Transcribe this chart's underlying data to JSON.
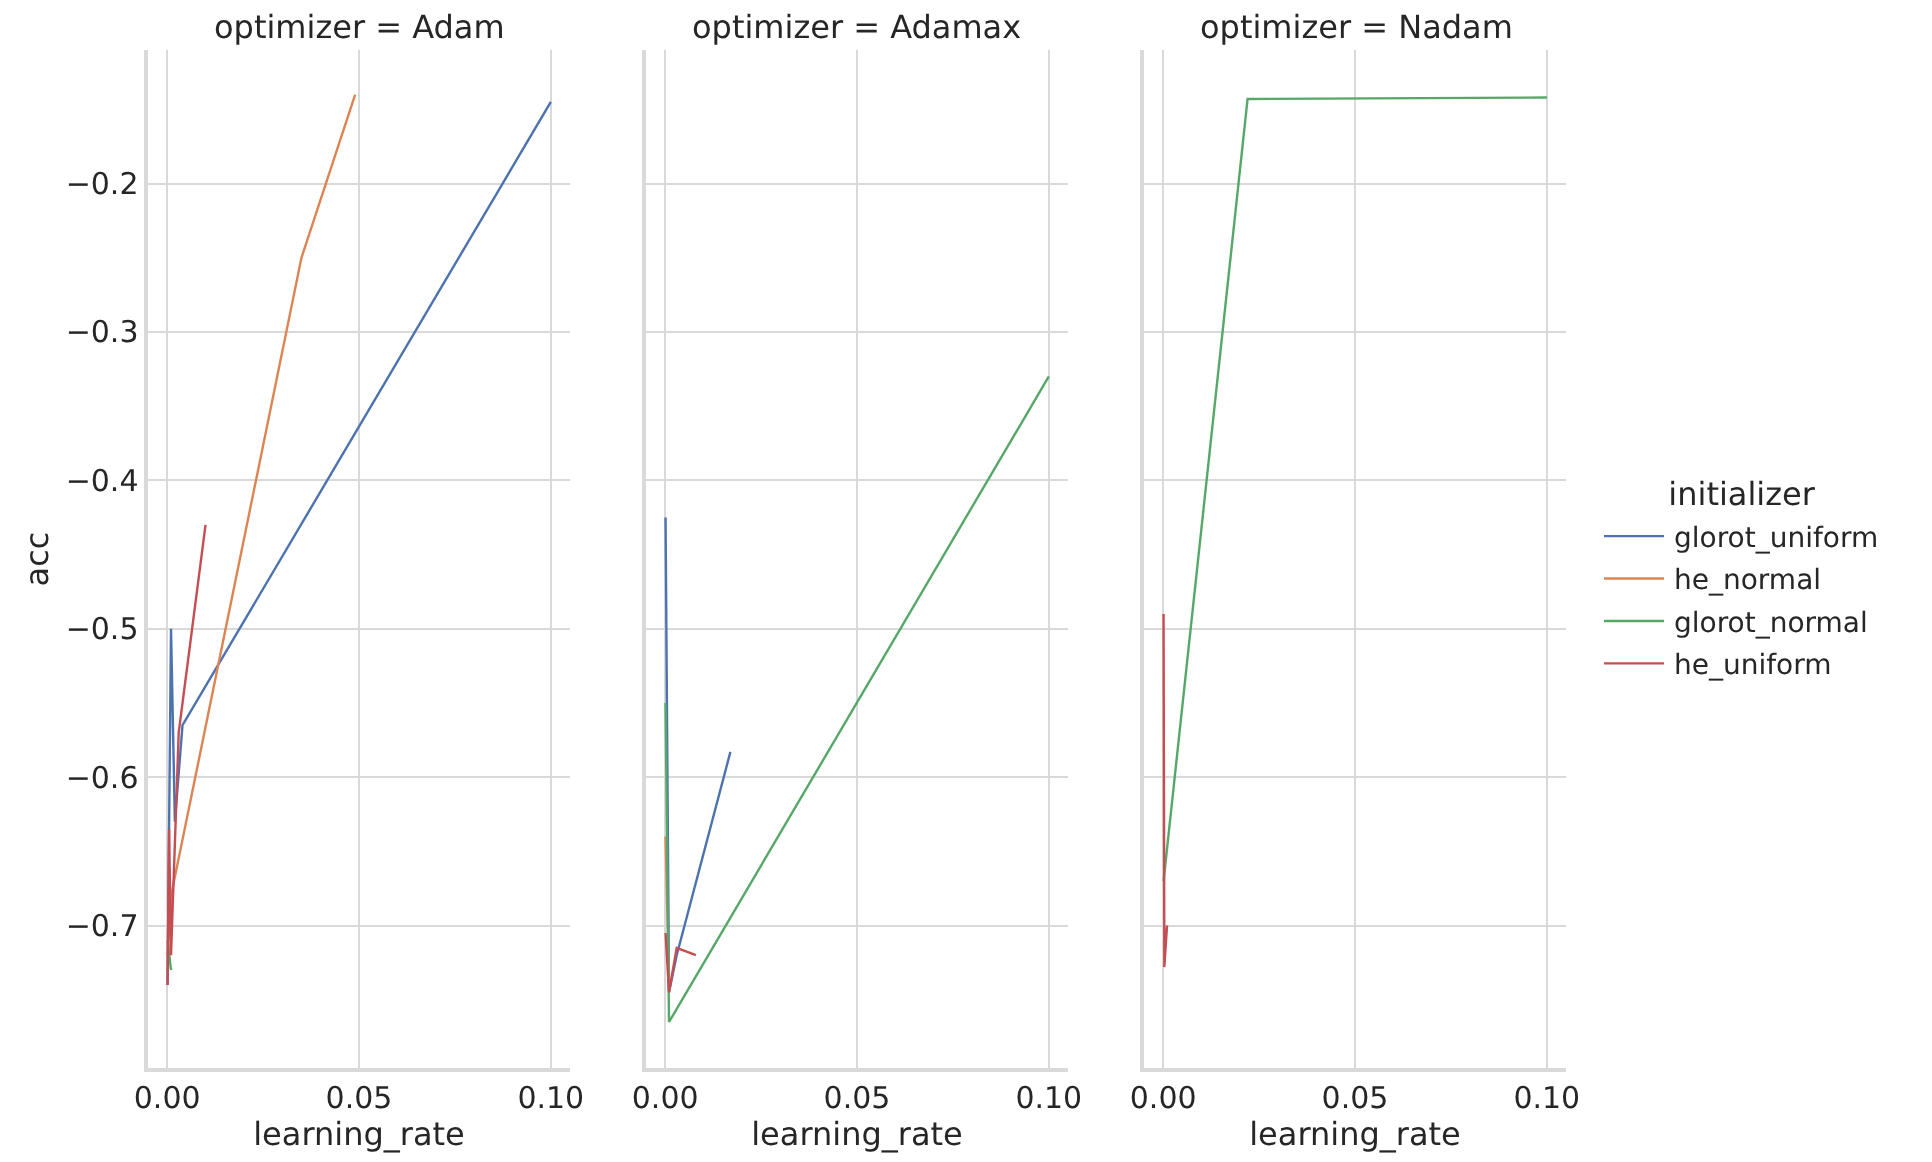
{
  "chart_data": [
    {
      "type": "line",
      "title": "optimizer = Adam",
      "xlabel": "learning_rate",
      "ylabel": "acc",
      "legend_title": "initializer",
      "xlim": [
        -0.005,
        0.105
      ],
      "ylim": [
        -0.796,
        -0.11
      ],
      "xticks": [
        {
          "value": 0,
          "label": "0.00"
        },
        {
          "value": 0.05,
          "label": "0.05"
        },
        {
          "value": 0.1,
          "label": "0.10"
        }
      ],
      "yticks": [
        {
          "value": -0.7,
          "label": "−0.7"
        },
        {
          "value": -0.6,
          "label": "−0.6"
        },
        {
          "value": -0.5,
          "label": "−0.5"
        },
        {
          "value": -0.4,
          "label": "−0.4"
        },
        {
          "value": -0.3,
          "label": "−0.3"
        },
        {
          "value": -0.2,
          "label": "−0.2"
        }
      ],
      "grid": true,
      "legend": "right",
      "series": [
        {
          "name": "glorot_uniform",
          "color": "#4c72b0",
          "x": [
            0.0001,
            0.001,
            0.002,
            0.004,
            0.1
          ],
          "values": [
            -0.74,
            -0.5,
            -0.63,
            -0.565,
            -0.145
          ]
        },
        {
          "name": "he_normal",
          "color": "#dd8452",
          "x": [
            0.0001,
            0.001,
            0.035,
            0.049
          ],
          "values": [
            -0.72,
            -0.68,
            -0.25,
            -0.14
          ]
        },
        {
          "name": "glorot_normal",
          "color": "#55a868",
          "x": [
            0.0001,
            0.001
          ],
          "values": [
            -0.71,
            -0.73
          ]
        },
        {
          "name": "he_uniform",
          "color": "#c44e52",
          "x": [
            0.0001,
            0.0005,
            0.001,
            0.003,
            0.01
          ],
          "values": [
            -0.74,
            -0.635,
            -0.72,
            -0.57,
            -0.43
          ]
        }
      ]
    },
    {
      "type": "line",
      "title": "optimizer = Adamax",
      "xlabel": "learning_rate",
      "xlim": [
        -0.005,
        0.105
      ],
      "ylim": [
        -0.796,
        -0.11
      ],
      "xticks": [
        {
          "value": 0,
          "label": "0.00"
        },
        {
          "value": 0.05,
          "label": "0.05"
        },
        {
          "value": 0.1,
          "label": "0.10"
        }
      ],
      "yticks": [
        -0.7,
        -0.6,
        -0.5,
        -0.4,
        -0.3,
        -0.2
      ],
      "tick_labels": "x",
      "grid": true,
      "legend": false,
      "series": [
        {
          "color": "#4c72b0",
          "x": [
            0.0001,
            0.001,
            0.003,
            0.017
          ],
          "values": [
            -0.425,
            -0.745,
            -0.72,
            -0.583
          ]
        },
        {
          "color": "#dd8452",
          "x": [
            0.0001,
            0.001
          ],
          "values": [
            -0.64,
            -0.74
          ]
        },
        {
          "color": "#55a868",
          "x": [
            0.0001,
            0.001,
            0.1
          ],
          "values": [
            -0.55,
            -0.765,
            -0.33
          ]
        },
        {
          "color": "#c44e52",
          "x": [
            0.0001,
            0.001,
            0.003,
            0.008
          ],
          "values": [
            -0.705,
            -0.745,
            -0.715,
            -0.72
          ]
        }
      ]
    },
    {
      "type": "line",
      "title": "optimizer = Nadam",
      "xlabel": "learning_rate",
      "xlim": [
        -0.005,
        0.105
      ],
      "ylim": [
        -0.796,
        -0.11
      ],
      "xticks": [
        {
          "value": 0,
          "label": "0.00"
        },
        {
          "value": 0.05,
          "label": "0.05"
        },
        {
          "value": 0.1,
          "label": "0.10"
        }
      ],
      "yticks": [
        -0.7,
        -0.6,
        -0.5,
        -0.4,
        -0.3,
        -0.2
      ],
      "tick_labels": "x",
      "grid": true,
      "legend": false,
      "series": [
        {
          "color": "#55a868",
          "x": [
            0.0001,
            0.022,
            0.1
          ],
          "values": [
            -0.67,
            -0.143,
            -0.142
          ]
        },
        {
          "color": "#c44e52",
          "x": [
            0.0001,
            0.0003,
            0.001
          ],
          "values": [
            -0.49,
            -0.728,
            -0.7
          ]
        }
      ]
    }
  ]
}
